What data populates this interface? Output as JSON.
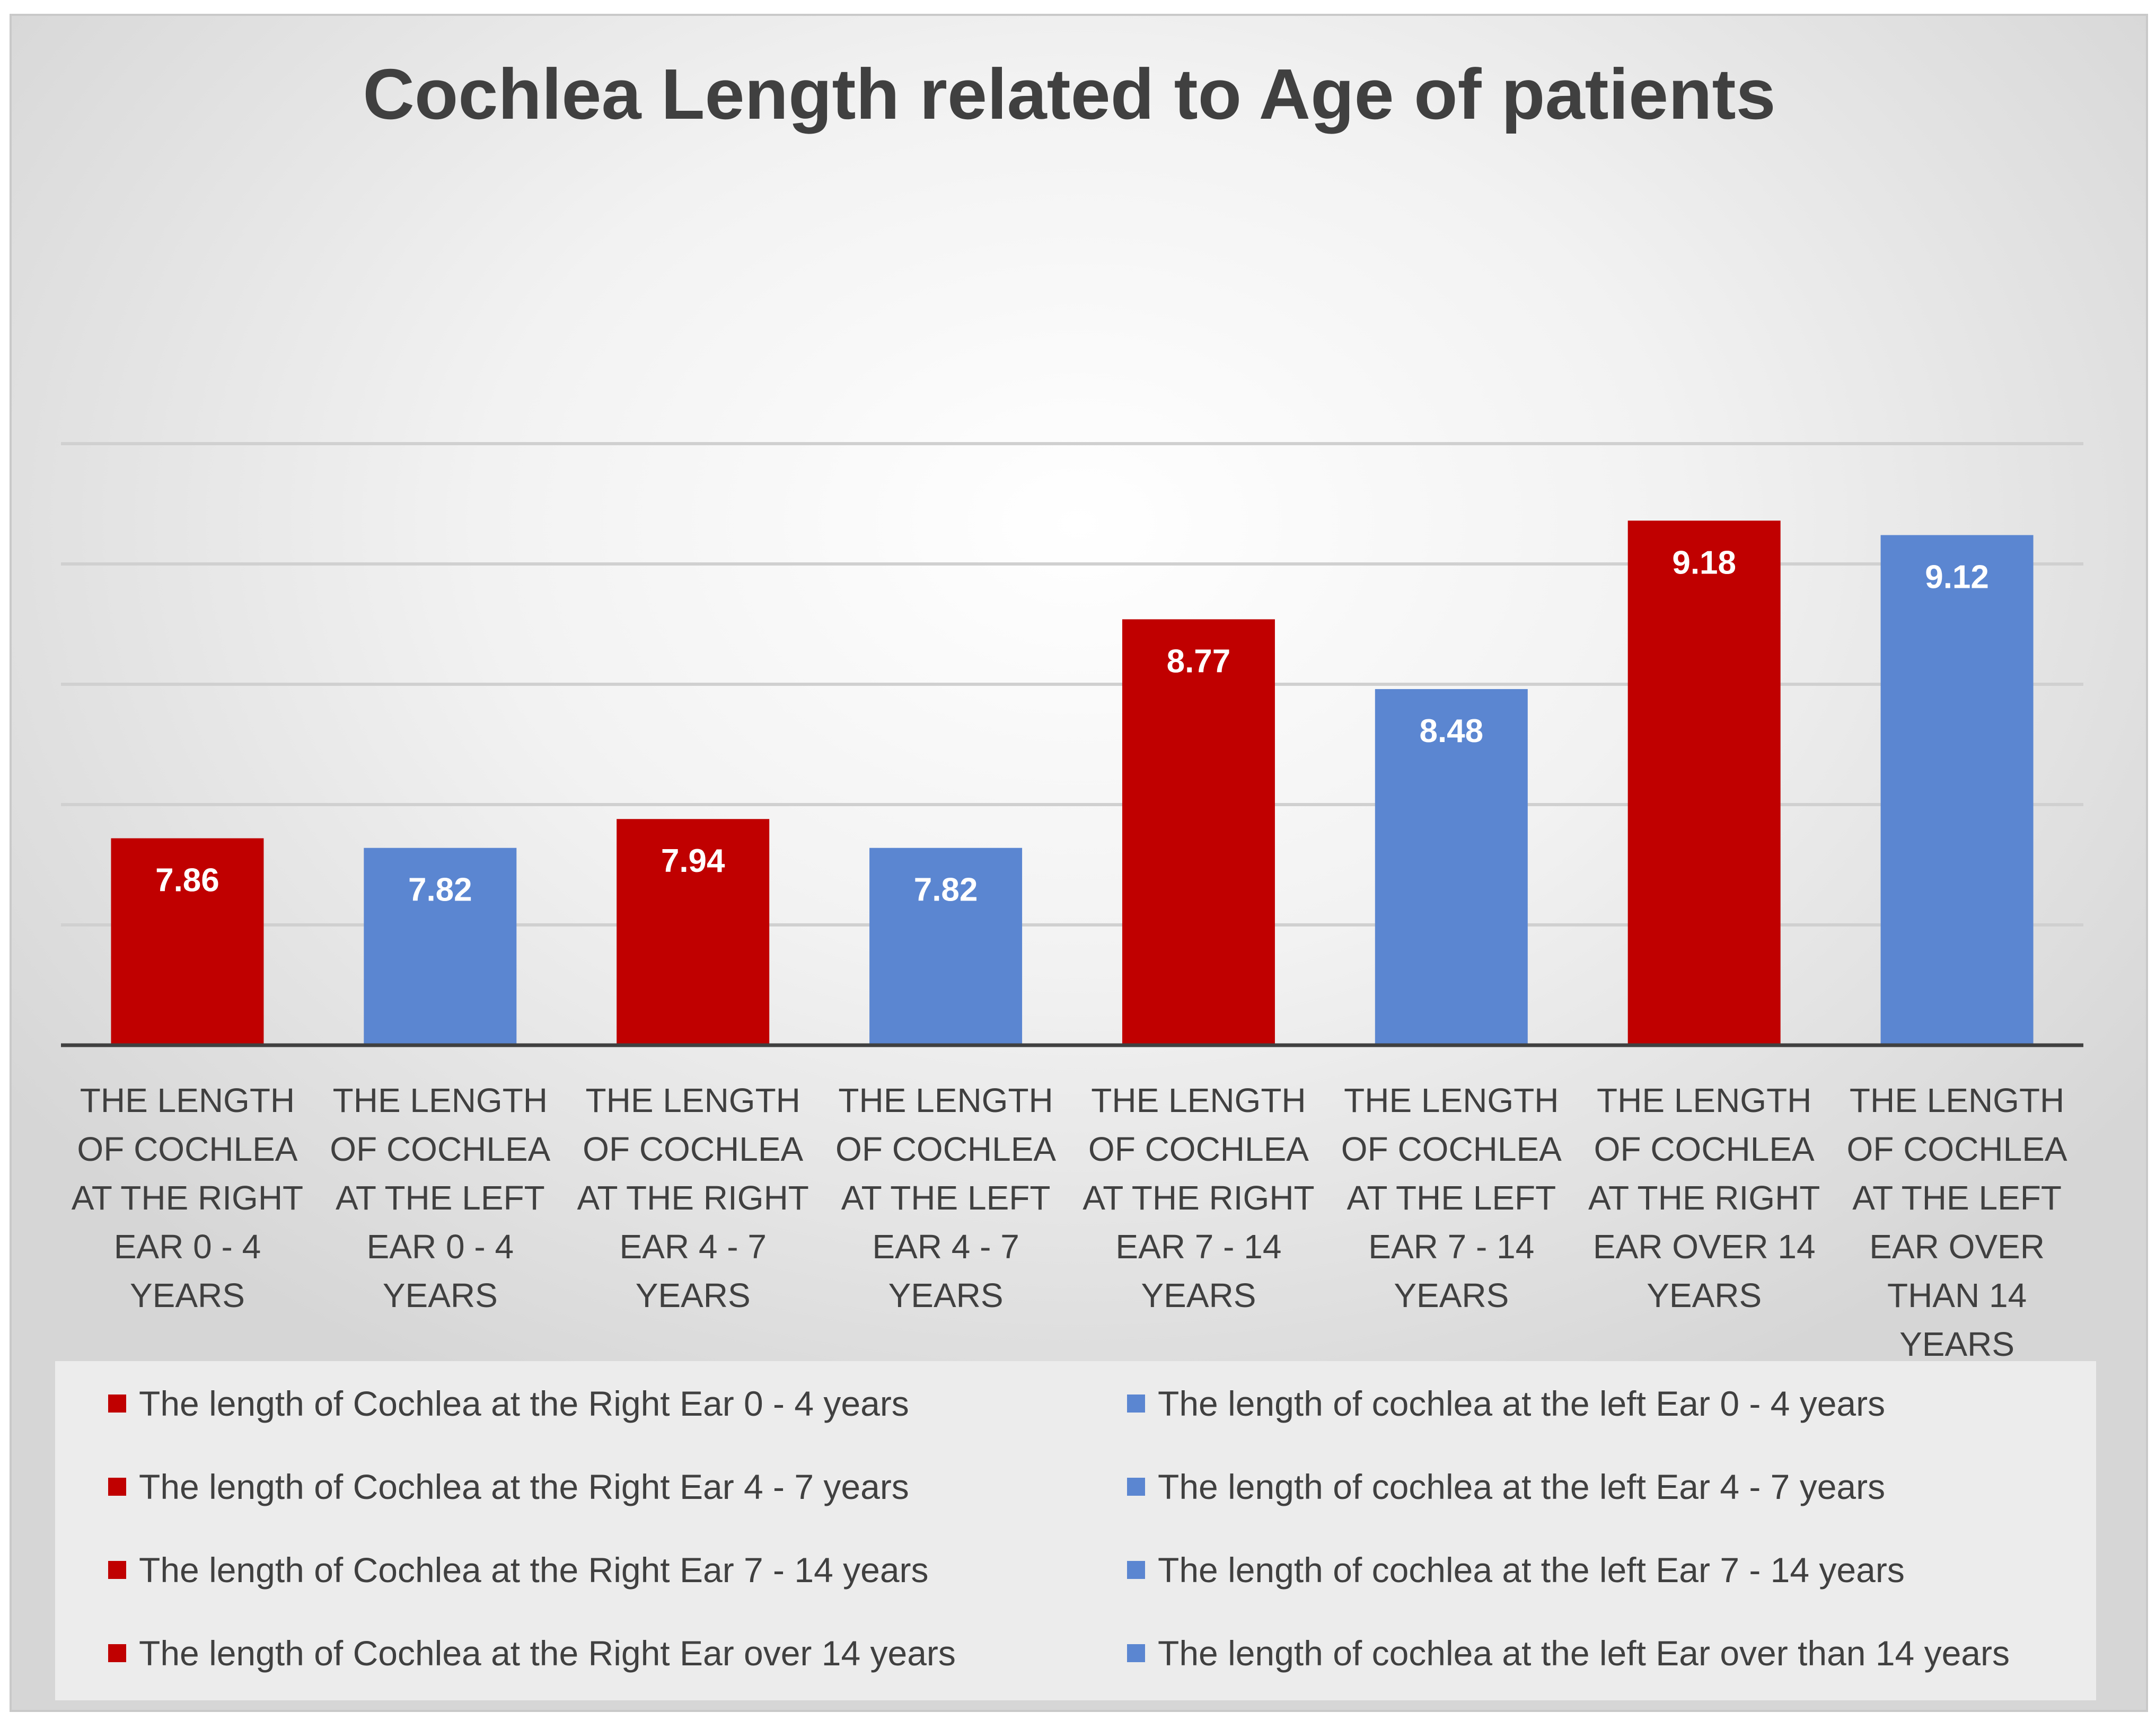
{
  "chart_data": {
    "type": "bar",
    "title": "Cochlea Length related to Age of patients",
    "xlabel": "",
    "ylabel": "",
    "ylim": [
      7,
      9.5
    ],
    "grid": true,
    "legend_position": "bottom",
    "categories": [
      "THE LENGTH OF COCHLEA AT THE RIGHT EAR  0 - 4 YEARS",
      "THE LENGTH OF COCHLEA AT THE LEFT EAR 0 - 4 YEARS",
      "THE LENGTH OF COCHLEA AT THE RIGHT EAR 4 - 7 YEARS",
      "THE LENGTH OF COCHLEA AT THE LEFT EAR 4 - 7 YEARS",
      "THE LENGTH OF COCHLEA AT THE RIGHT EAR 7 - 14 YEARS",
      "THE LENGTH OF COCHLEA AT THE LEFT EAR 7 - 14 YEARS",
      "THE LENGTH OF COCHLEA AT THE RIGHT EAR OVER 14 YEARS",
      "THE LENGTH OF COCHLEA AT THE LEFT EAR OVER THAN 14 YEARS"
    ],
    "values": [
      7.86,
      7.82,
      7.94,
      7.82,
      8.77,
      8.48,
      9.18,
      9.12
    ],
    "value_labels": [
      "7.86",
      "7.82",
      "7.94",
      "7.82",
      "8.77",
      "8.48",
      "9.18",
      "9.12"
    ],
    "bar_colors": [
      "#c00000",
      "#5b86d1",
      "#c00000",
      "#5b86d1",
      "#c00000",
      "#5b86d1",
      "#c00000",
      "#5b86d1"
    ],
    "legend": [
      {
        "label": "The length of Cochlea at the Right Ear  0 - 4 years",
        "color": "#c00000"
      },
      {
        "label": "The length of cochlea at the left Ear 0 - 4 years",
        "color": "#5b86d1"
      },
      {
        "label": "The length of Cochlea at the Right Ear 4 - 7 years",
        "color": "#c00000"
      },
      {
        "label": "The length of cochlea at the left Ear 4 - 7  years",
        "color": "#5b86d1"
      },
      {
        "label": "The length of Cochlea at the Right Ear 7 - 14 years",
        "color": "#c00000"
      },
      {
        "label": "The length of cochlea at the left Ear 7 - 14 years",
        "color": "#5b86d1"
      },
      {
        "label": "The length of Cochlea at the Right Ear over 14 years",
        "color": "#c00000"
      },
      {
        "label": "The length of cochlea at the left Ear over than 14 years",
        "color": "#5b86d1"
      }
    ]
  }
}
